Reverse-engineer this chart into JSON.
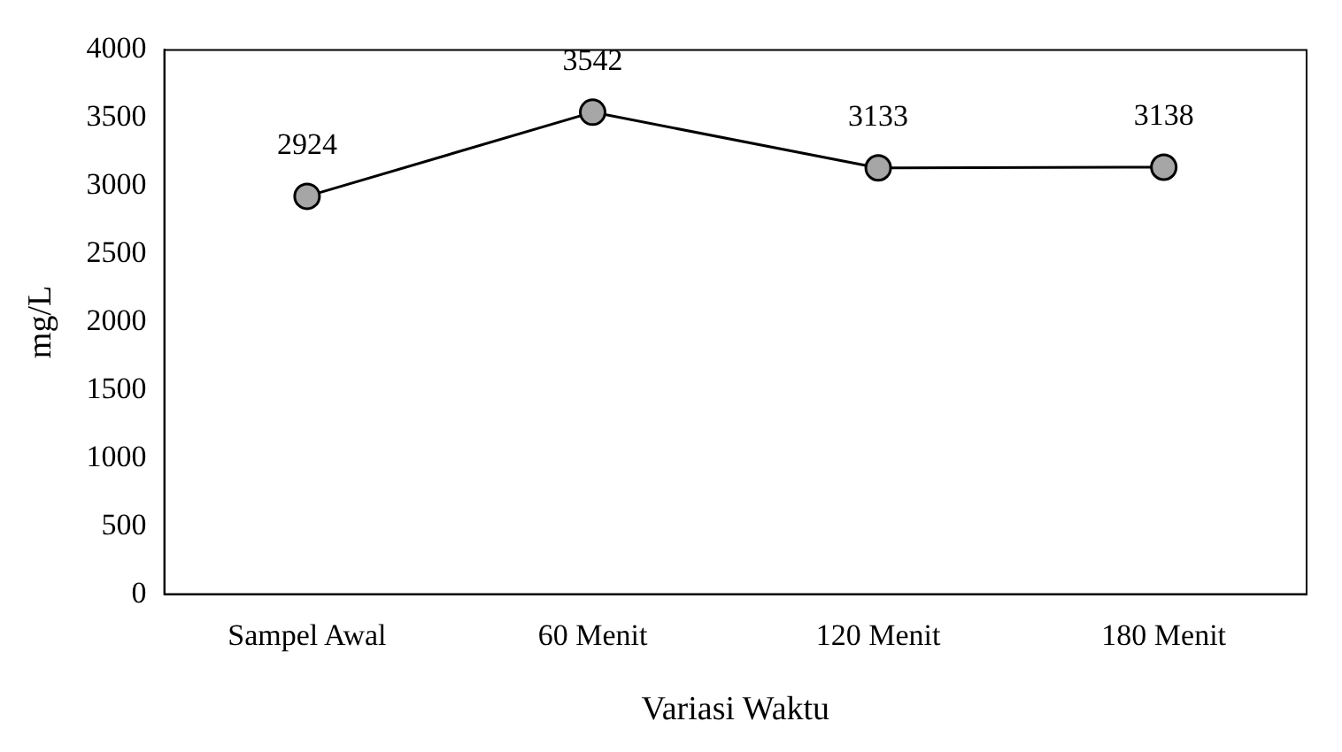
{
  "chart_data": {
    "type": "line",
    "xlabel": "Variasi Waktu",
    "ylabel": "mg/L",
    "categories": [
      "Sampel Awal",
      "60 Menit",
      "120 Menit",
      "180 Menit"
    ],
    "series": [
      {
        "color": "#000000",
        "values": [
          2924,
          3542,
          3133,
          3138
        ]
      }
    ],
    "ylim": [
      0,
      4000
    ],
    "yticks": [
      0,
      500,
      1000,
      1500,
      2000,
      2500,
      3000,
      3500,
      4000
    ],
    "grid": false,
    "legend": false,
    "marker": "circle",
    "line_style": "solid",
    "data_labels": true
  }
}
